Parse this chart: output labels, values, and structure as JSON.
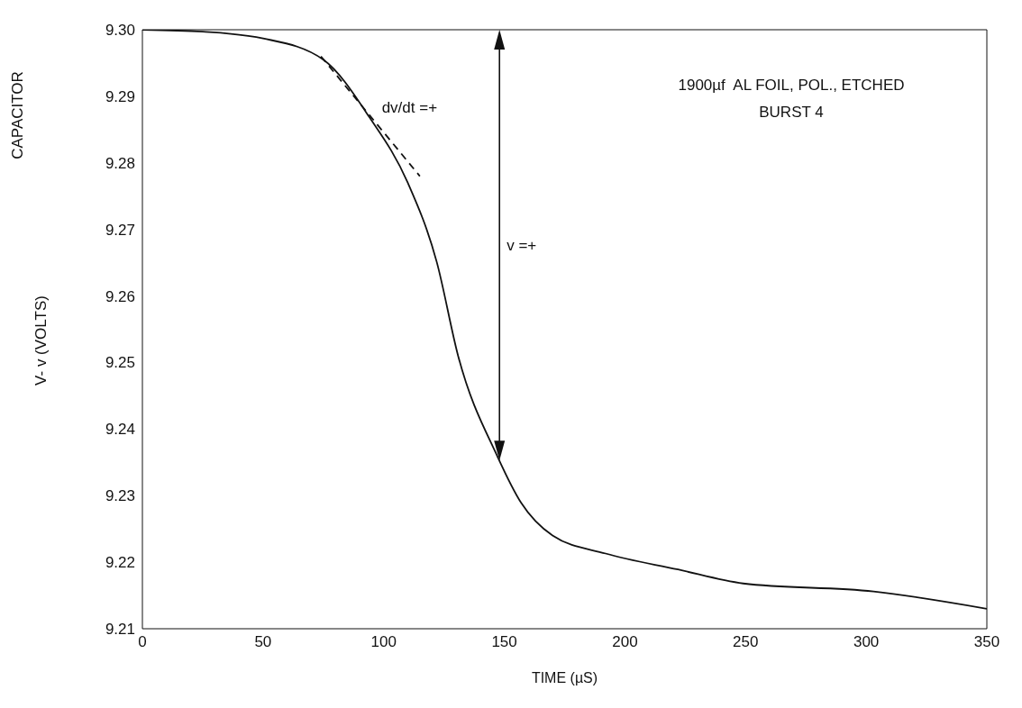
{
  "chart_data": {
    "type": "line",
    "xlabel": "TIME (µS)",
    "ylabel": "CAPACITOR\nV- v (VOLTS)",
    "xlim": [
      0,
      350
    ],
    "xticks": [
      0,
      50,
      100,
      150,
      200,
      250,
      300,
      350
    ],
    "ylim": [
      9.21,
      9.3
    ],
    "yticks": [
      9.21,
      9.22,
      9.23,
      9.24,
      9.25,
      9.26,
      9.27,
      9.28,
      9.29,
      {
        "value": 9.3,
        "label": "9.30"
      }
    ],
    "marker": "none",
    "ref_lines": [
      {
        "axis": "x",
        "value": 148,
        "label": "v =+"
      }
    ],
    "series": [
      {
        "color": "#111111",
        "line_style": "solid",
        "x": [
          0,
          25,
          50,
          75,
          94,
          110,
          122,
          131,
          147,
          157,
          170,
          192,
          222,
          249,
          303,
          350
        ],
        "values": [
          9.3,
          9.2997,
          9.2987,
          9.2955,
          9.2869,
          9.277,
          9.2651,
          9.2508,
          9.236,
          9.2289,
          9.224,
          9.2213,
          9.2189,
          9.2168,
          9.2156,
          9.213
        ]
      },
      {
        "color": "#111111",
        "line_style": "dashed",
        "x": [
          74,
          115
        ],
        "values": [
          9.296,
          9.278
        ]
      }
    ],
    "annotations": [
      {
        "text": "dv/dt =+",
        "x": 94,
        "y": 9.287
      },
      "1900µf  AL FOIL, POL., ETCHED",
      "BURST 4"
    ]
  }
}
